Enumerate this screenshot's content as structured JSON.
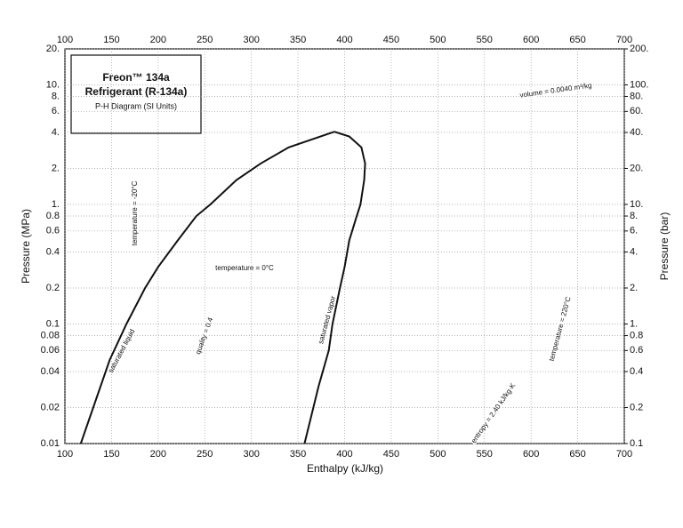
{
  "chart_data": {
    "type": "line",
    "title": "Freon™ 134a",
    "subtitle": "Refrigerant (R-134a)",
    "caption": "P-H Diagram (SI Units)",
    "x_label": "Enthalpy (kJ/kg)",
    "y_label": "Pressure (MPa)",
    "y2_label": "Pressure (bar)",
    "xlim": [
      100,
      700
    ],
    "xticks": [
      100,
      150,
      200,
      250,
      300,
      350,
      400,
      450,
      500,
      550,
      600,
      650,
      700
    ],
    "ylim": [
      0.01,
      20
    ],
    "yticks": [
      0.01,
      0.02,
      0.04,
      0.06,
      0.08,
      0.1,
      0.2,
      0.4,
      0.6,
      0.8,
      {
        "value": 1,
        "label": "1."
      },
      {
        "value": 2,
        "label": "2."
      },
      {
        "value": 4,
        "label": "4."
      },
      {
        "value": 6,
        "label": "6."
      },
      {
        "value": 8,
        "label": "8."
      },
      {
        "value": 10,
        "label": "10."
      },
      {
        "value": 20,
        "label": "20."
      }
    ],
    "y2lim": [
      0.1,
      200
    ],
    "y2ticks": [
      0.1,
      0.2,
      0.4,
      0.6,
      0.8,
      {
        "value": 1,
        "label": "1."
      },
      {
        "value": 2,
        "label": "2."
      },
      {
        "value": 4,
        "label": "4."
      },
      {
        "value": 6,
        "label": "6."
      },
      {
        "value": 8,
        "label": "8."
      },
      {
        "value": 10,
        "label": "10."
      },
      {
        "value": 20,
        "label": "20."
      },
      {
        "value": 40,
        "label": "40."
      },
      {
        "value": 60,
        "label": "60."
      },
      {
        "value": 80,
        "label": "80."
      },
      {
        "value": 100,
        "label": "100."
      },
      {
        "value": 200,
        "label": "200."
      }
    ],
    "log_scale": true,
    "grid": true,
    "series": [
      {
        "name": "saturated liquid",
        "color": "#111111",
        "x": [
          117,
          148,
          166,
          186,
          200,
          221,
          241,
          256,
          284,
          310,
          340,
          389
        ],
        "values": [
          0.01,
          0.05,
          0.1,
          0.2,
          0.3,
          0.5,
          0.8,
          1.0,
          1.6,
          2.2,
          3.0,
          4.06
        ]
      },
      {
        "name": "saturated vapor",
        "color": "#111111",
        "x": [
          357,
          372,
          383,
          387,
          395,
          400,
          405,
          413,
          417,
          421,
          422,
          418,
          405,
          389
        ],
        "values": [
          0.01,
          0.03,
          0.06,
          0.1,
          0.2,
          0.3,
          0.5,
          0.8,
          1.0,
          1.6,
          2.2,
          3.0,
          3.7,
          4.06
        ]
      }
    ],
    "annotations": [
      "temperature = 0°C",
      "temperature = -20°C",
      "volume = 0.0040 m³/kg",
      "quality = 0.4",
      "entropy = 2.40 kJ/kg·K",
      "temperature = 220°C"
    ]
  }
}
